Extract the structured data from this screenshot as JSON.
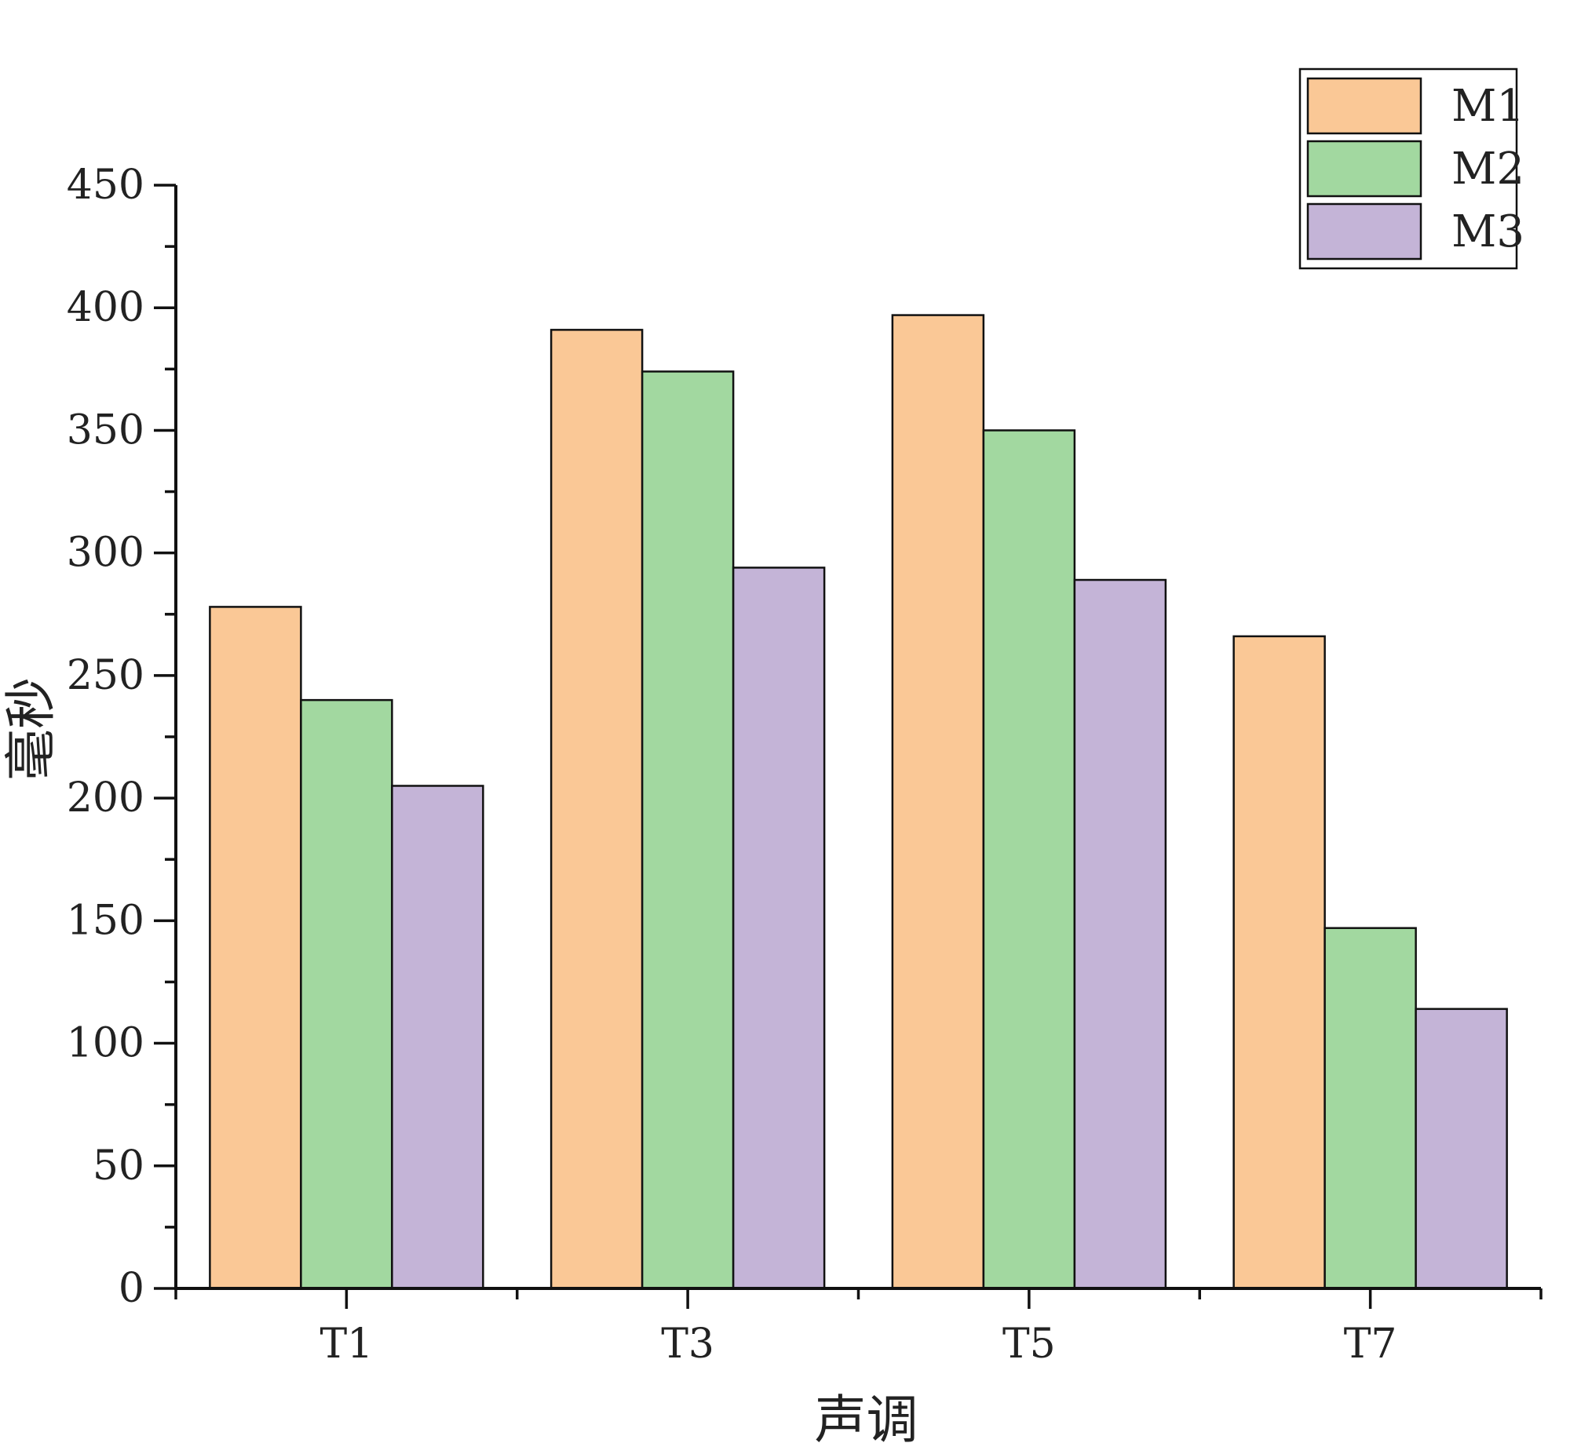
{
  "chart_data": {
    "type": "bar",
    "categories": [
      "T1",
      "T3",
      "T5",
      "T7"
    ],
    "series": [
      {
        "name": "M1",
        "values": [
          278,
          391,
          397,
          266
        ],
        "color": "#FAC896"
      },
      {
        "name": "M2",
        "values": [
          240,
          374,
          350,
          147
        ],
        "color": "#A2D8A0"
      },
      {
        "name": "M3",
        "values": [
          205,
          294,
          289,
          114
        ],
        "color": "#C4B4D7"
      }
    ],
    "title": "",
    "xlabel": "声调",
    "ylabel": "毫秒",
    "ylim": [
      0,
      450
    ],
    "yticks": [
      0,
      50,
      100,
      150,
      200,
      250,
      300,
      350,
      400,
      450
    ],
    "grid": false,
    "legend_position": "top-right"
  }
}
